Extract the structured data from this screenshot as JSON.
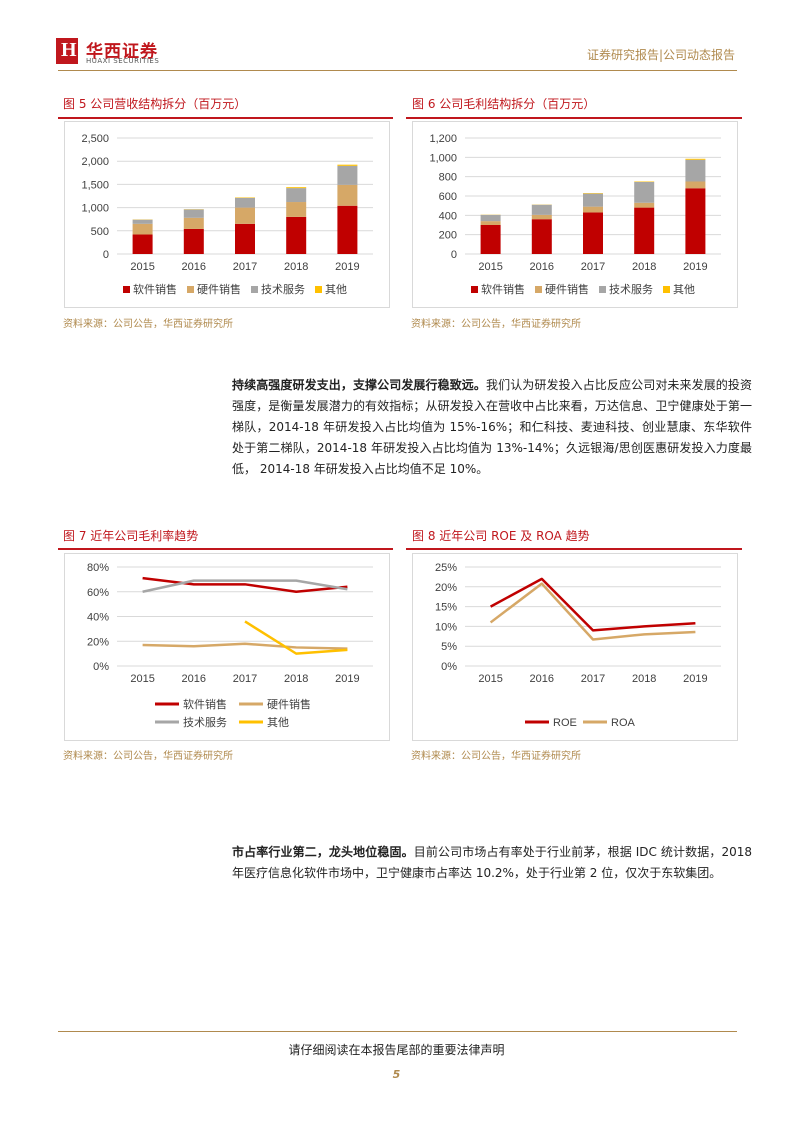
{
  "header": {
    "brand_cn": "华西证券",
    "brand_en": "HUAXI SECURITIES",
    "right_text": "证券研究报告|公司动态报告"
  },
  "figures": {
    "fig5": {
      "title": "图 5   公司营收结构拆分（百万元）",
      "source": "资料来源：公司公告，华西证券研究所"
    },
    "fig6": {
      "title": "图 6   公司毛利结构拆分（百万元）",
      "source": "资料来源：公司公告，华西证券研究所"
    },
    "fig7": {
      "title": "图 7   近年公司毛利率趋势",
      "source": "资料来源：公司公告，华西证券研究所"
    },
    "fig8": {
      "title": "图 8   近年公司 ROE 及 ROA 趋势",
      "source": "资料来源：公司公告，华西证券研究所"
    }
  },
  "paragraph1": {
    "bold": "持续高强度研发支出，支撑公司发展行稳致远。",
    "text": "我们认为研发投入占比反应公司对未来发展的投资强度，是衡量发展潜力的有效指标；从研发投入在营收中占比来看，万达信息、卫宁健康处于第一梯队，2014-18 年研发投入占比均值为 15%-16%；和仁科技、麦迪科技、创业慧康、东华软件处于第二梯队，2014-18 年研发投入占比均值为 13%-14%；久远银海/思创医惠研发投入力度最低， 2014-18 年研发投入占比均值不足 10%。"
  },
  "paragraph2": {
    "bold": "市占率行业第二，龙头地位稳固。",
    "text": "目前公司市场占有率处于行业前茅，根据 IDC 统计数据，2018 年医疗信息化软件市场中，卫宁健康市占率达 10.2%，处于行业第 2 位，仅次于东软集团。"
  },
  "footer": {
    "text": "请仔细阅读在本报告尾部的重要法律声明",
    "page": "5"
  },
  "colors": {
    "red": "#c00000",
    "tan": "#d6a867",
    "gray": "#a6a6a6",
    "yellow": "#ffc000"
  },
  "chart_data": [
    {
      "id": "fig5",
      "type": "bar",
      "stacked": true,
      "categories": [
        "2015",
        "2016",
        "2017",
        "2018",
        "2019"
      ],
      "series": [
        {
          "name": "软件销售",
          "values": [
            420,
            540,
            650,
            800,
            1040
          ]
        },
        {
          "name": "硬件销售",
          "values": [
            230,
            240,
            350,
            320,
            450
          ]
        },
        {
          "name": "技术服务",
          "values": [
            90,
            180,
            210,
            300,
            410
          ]
        },
        {
          "name": "其他",
          "values": [
            5,
            5,
            10,
            20,
            25
          ]
        }
      ],
      "ylim": [
        0,
        2500
      ],
      "yticks": [
        "0",
        "500",
        "1,000",
        "1,500",
        "2,000",
        "2,500"
      ],
      "grid": true,
      "legend": "bottom"
    },
    {
      "id": "fig6",
      "type": "bar",
      "stacked": true,
      "categories": [
        "2015",
        "2016",
        "2017",
        "2018",
        "2019"
      ],
      "series": [
        {
          "name": "软件销售",
          "values": [
            300,
            360,
            430,
            480,
            680
          ]
        },
        {
          "name": "硬件销售",
          "values": [
            40,
            45,
            60,
            50,
            70
          ]
        },
        {
          "name": "技术服务",
          "values": [
            65,
            105,
            135,
            215,
            225
          ]
        },
        {
          "name": "其他",
          "values": [
            2,
            2,
            5,
            5,
            10
          ]
        }
      ],
      "ylim": [
        0,
        1200
      ],
      "yticks": [
        "0",
        "200",
        "400",
        "600",
        "800",
        "1,000",
        "1,200"
      ],
      "grid": true,
      "legend": "bottom"
    },
    {
      "id": "fig7",
      "type": "line",
      "categories": [
        "2015",
        "2016",
        "2017",
        "2018",
        "2019"
      ],
      "series": [
        {
          "name": "软件销售",
          "values": [
            71,
            66,
            66,
            60,
            64
          ]
        },
        {
          "name": "硬件销售",
          "values": [
            17,
            16,
            18,
            15,
            14
          ]
        },
        {
          "name": "技术服务",
          "values": [
            60,
            69,
            69,
            69,
            62
          ]
        },
        {
          "name": "其他",
          "values": [
            null,
            null,
            36,
            10,
            13
          ]
        }
      ],
      "ylim": [
        0,
        80
      ],
      "yticks": [
        "0%",
        "20%",
        "40%",
        "60%",
        "80%"
      ],
      "grid": true,
      "legend": "bottom"
    },
    {
      "id": "fig8",
      "type": "line",
      "categories": [
        "2015",
        "2016",
        "2017",
        "2018",
        "2019"
      ],
      "series": [
        {
          "name": "ROE",
          "values": [
            15,
            22,
            9,
            10,
            10.8
          ]
        },
        {
          "name": "ROA",
          "values": [
            11,
            20.8,
            6.7,
            8,
            8.6
          ]
        }
      ],
      "ylim": [
        0,
        25
      ],
      "yticks": [
        "0%",
        "5%",
        "10%",
        "15%",
        "20%",
        "25%"
      ],
      "grid": true,
      "legend": "bottom"
    }
  ]
}
